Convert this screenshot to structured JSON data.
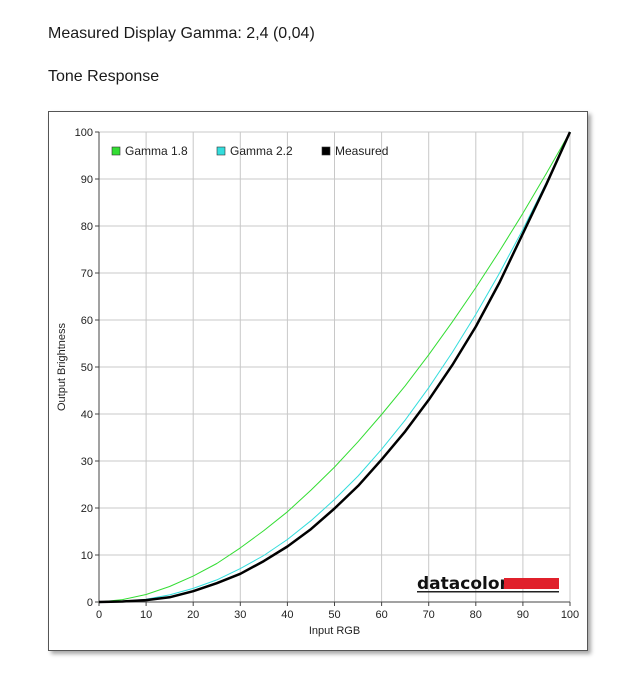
{
  "header": {
    "gamma_line": "Measured Display Gamma: 2,4 (0,04)",
    "section_title": "Tone Response"
  },
  "brand": {
    "name": "datacolor",
    "bar_color": "#e0202b"
  },
  "chart_data": {
    "type": "line",
    "xlabel": "Input RGB",
    "ylabel": "Output Brightness",
    "xlim": [
      0,
      100
    ],
    "ylim": [
      0,
      100
    ],
    "xticks": [
      0,
      10,
      20,
      30,
      40,
      50,
      60,
      70,
      80,
      90,
      100
    ],
    "yticks": [
      0,
      10,
      20,
      30,
      40,
      50,
      60,
      70,
      80,
      90,
      100
    ],
    "grid": true,
    "legend_position": "top-left",
    "x": [
      0,
      5,
      10,
      15,
      20,
      25,
      30,
      35,
      40,
      45,
      50,
      55,
      60,
      65,
      70,
      75,
      80,
      85,
      90,
      95,
      100
    ],
    "series": [
      {
        "name": "Gamma 1.8",
        "color": "#33dd33",
        "width": 1,
        "values": [
          0,
          0.5,
          1.6,
          3.3,
          5.5,
          8.2,
          11.5,
          15.2,
          19.2,
          23.8,
          28.7,
          34.1,
          39.9,
          46.0,
          52.6,
          59.6,
          66.9,
          74.6,
          82.7,
          91.2,
          100
        ]
      },
      {
        "name": "Gamma 2.2",
        "color": "#33dddd",
        "width": 1,
        "values": [
          0,
          0.1,
          0.6,
          1.5,
          2.9,
          4.7,
          7.1,
          9.9,
          13.3,
          17.3,
          21.8,
          26.8,
          32.5,
          38.7,
          45.6,
          53.1,
          61.2,
          69.9,
          79.3,
          89.3,
          100
        ]
      },
      {
        "name": "Measured",
        "color": "#000000",
        "width": 2.5,
        "values": [
          0,
          0.1,
          0.4,
          1.0,
          2.3,
          4.0,
          6.0,
          8.7,
          11.8,
          15.5,
          19.9,
          24.7,
          30.3,
          36.3,
          43.0,
          50.4,
          58.6,
          67.9,
          78.4,
          88.9,
          100
        ]
      }
    ]
  }
}
